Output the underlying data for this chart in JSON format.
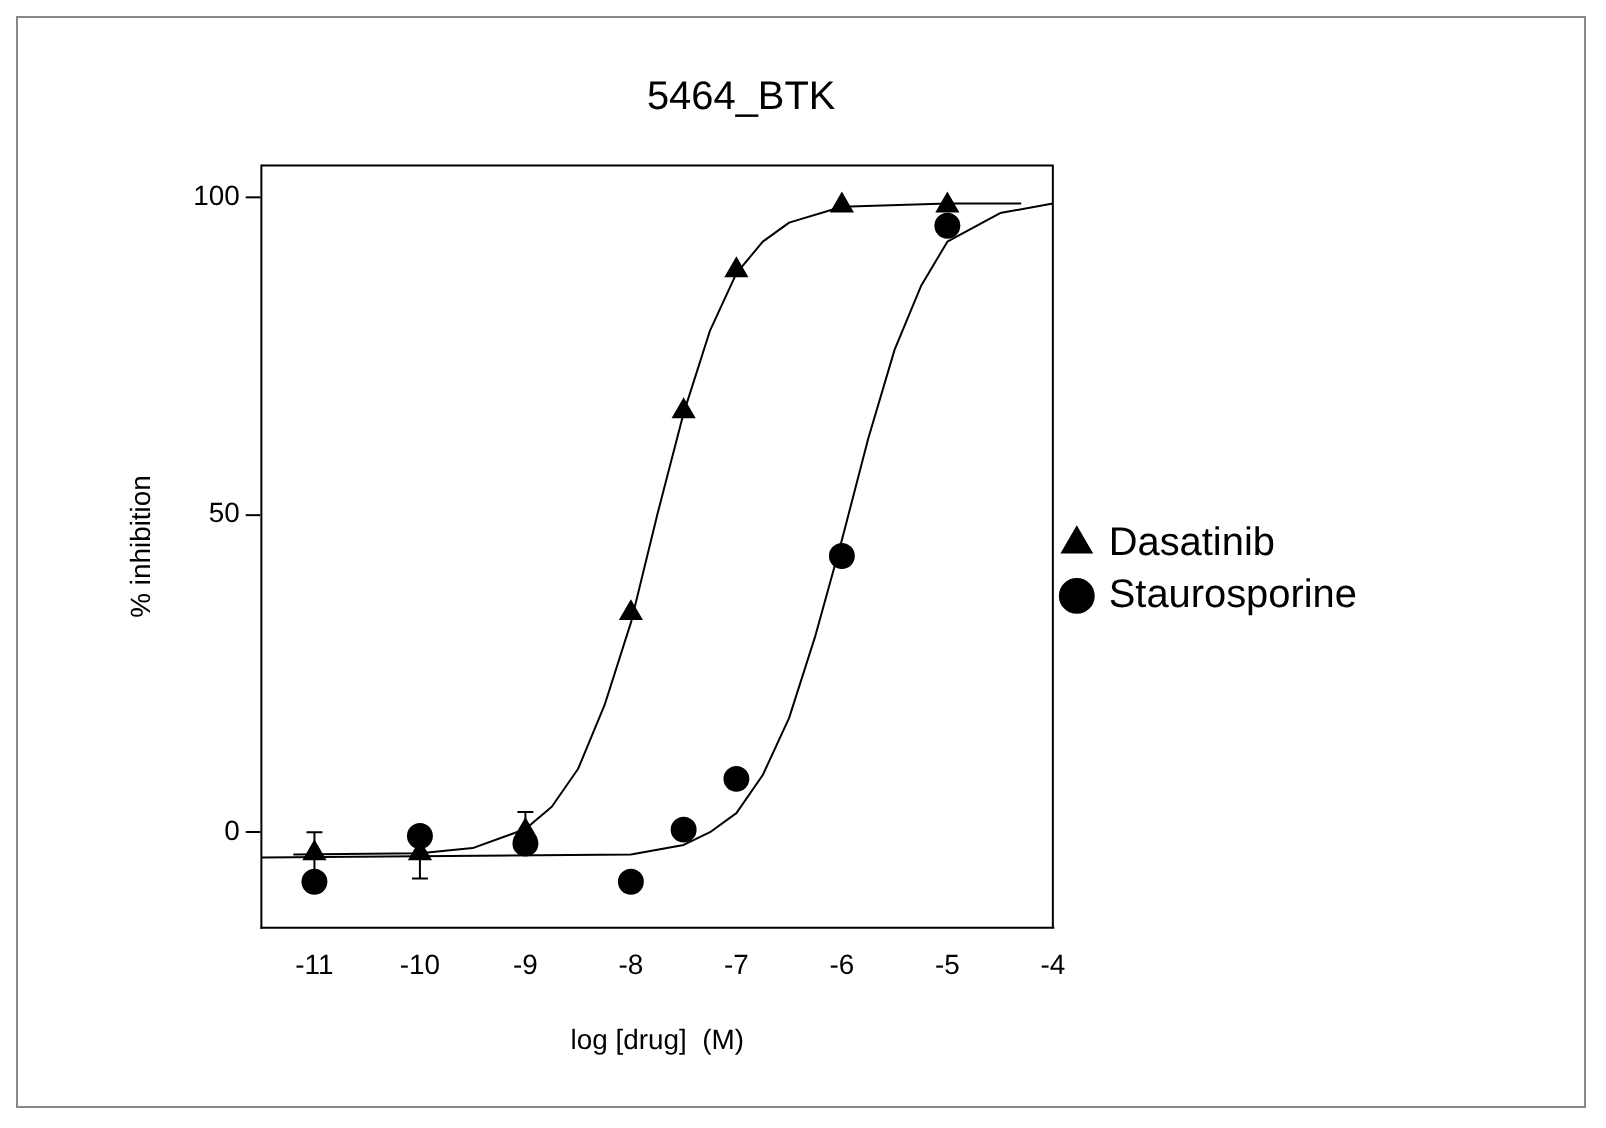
{
  "chart_data": {
    "type": "scatter",
    "title": "5464_BTK",
    "xlabel": "log [drug]  (M)",
    "ylabel": "% inhibition",
    "xlim": [
      -11.5,
      -4
    ],
    "xticks": [
      -11,
      -10,
      -9,
      -8,
      -7,
      -6,
      -5,
      -4
    ],
    "ylim": [
      -15,
      105
    ],
    "yticks": [
      0,
      50,
      100
    ],
    "grid": false,
    "legend": "right",
    "series": [
      {
        "name": "Dasatinib",
        "marker": "triangle",
        "color": "#000000",
        "x": [
          -11,
          -10,
          -9,
          -8,
          -7.5,
          -7,
          -6,
          -5
        ],
        "values": [
          -3.3,
          -3.3,
          0.2,
          34.5,
          66.3,
          88.5,
          98.7,
          98.7
        ],
        "errors": [
          3.3,
          4,
          3,
          null,
          null,
          null,
          null,
          null
        ]
      },
      {
        "name": "Staurosporine",
        "marker": "circle",
        "color": "#000000",
        "x": [
          -11,
          -10,
          -9,
          -8,
          -7.5,
          -7,
          -6,
          -5
        ],
        "values": [
          -7.8,
          -0.6,
          -1.8,
          -7.8,
          0.4,
          8.4,
          43.5,
          95.5
        ]
      },
      {
        "type": "line",
        "marker": "none",
        "color": "#000000",
        "x": [
          -11.2,
          -10,
          -9.5,
          -9,
          -8.75,
          -8.5,
          -8.25,
          -8,
          -7.75,
          -7.5,
          -7.25,
          -7,
          -6.75,
          -6.5,
          -6,
          -5,
          -4.3
        ],
        "values": [
          -3.5,
          -3.3,
          -2.5,
          0.5,
          4,
          10,
          20,
          33,
          50,
          66,
          79,
          88,
          93,
          96,
          98.5,
          99,
          99
        ]
      },
      {
        "type": "line",
        "marker": "none",
        "color": "#000000",
        "x": [
          -11.5,
          -8,
          -7.5,
          -7.25,
          -7,
          -6.75,
          -6.5,
          -6.25,
          -6,
          -5.75,
          -5.5,
          -5.25,
          -5,
          -4.5,
          -4
        ],
        "values": [
          -4,
          -3.5,
          -2,
          0,
          3,
          9,
          18,
          31,
          46,
          62,
          76,
          86,
          93,
          97.5,
          99
        ]
      }
    ]
  }
}
